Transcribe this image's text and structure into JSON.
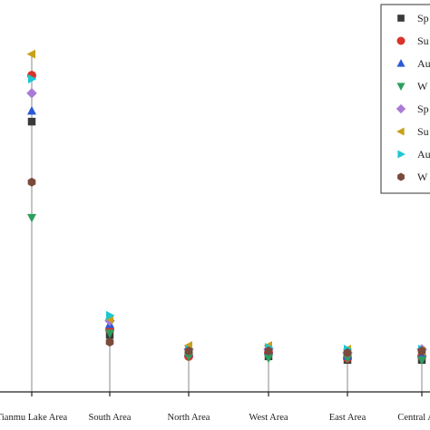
{
  "chart_data": {
    "type": "scatter",
    "categories": [
      "Tianmu Lake Area",
      "South Area",
      "North Area",
      "West Area",
      "East Area",
      "Central Area"
    ],
    "y_range": [
      0,
      100
    ],
    "grid": false,
    "legend_position": "top-right",
    "series": [
      {
        "name": "Sp",
        "marker": "square",
        "color": "#3a3a3a",
        "values": [
          76,
          16,
          10.5,
          10,
          9,
          9
        ]
      },
      {
        "name": "Su",
        "marker": "circle",
        "color": "#d9342b",
        "values": [
          89,
          17.5,
          10,
          11,
          9.5,
          10
        ]
      },
      {
        "name": "Au",
        "marker": "triangle-up",
        "color": "#2a5bd7",
        "values": [
          79,
          19,
          11,
          11.5,
          10,
          10.5
        ]
      },
      {
        "name": "W",
        "marker": "triangle-down",
        "color": "#2e9e5e",
        "values": [
          49,
          16.5,
          10,
          9.5,
          9.5,
          9
        ]
      },
      {
        "name": "Sp",
        "marker": "diamond",
        "color": "#a97bd6",
        "values": [
          84,
          20,
          12,
          12,
          11,
          12
        ]
      },
      {
        "name": "Su",
        "marker": "triangle-left",
        "color": "#c9a01a",
        "values": [
          95,
          20.5,
          13,
          13,
          12,
          11.5
        ]
      },
      {
        "name": "Au",
        "marker": "triangle-right",
        "color": "#1ec6d4",
        "values": [
          88,
          21.5,
          12,
          12.5,
          12,
          12
        ]
      },
      {
        "name": "W",
        "marker": "hexagon",
        "color": "#7a4a3c",
        "values": [
          59,
          14,
          11.5,
          11.5,
          11,
          11.5
        ]
      }
    ],
    "stem_color": "#8a8a8a"
  }
}
